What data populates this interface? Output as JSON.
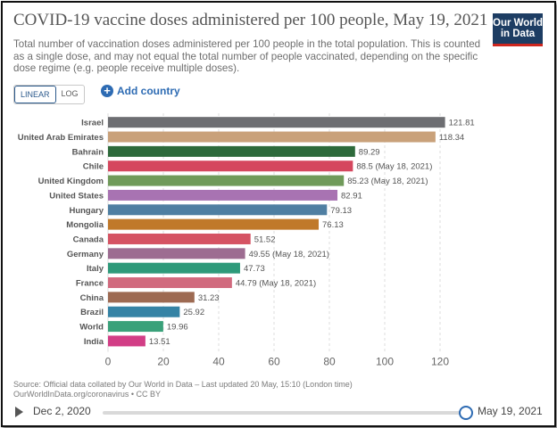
{
  "header": {
    "title": "COVID-19 vaccine doses administered per 100 people, May 19, 2021",
    "subtitle": "Total number of vaccination doses administered per 100 people in the total population. This is counted as a single dose, and may not equal the total number of people vaccinated, depending on the specific dose regime (e.g. people receive multiple doses).",
    "logo_line1": "Our World",
    "logo_line2": "in Data"
  },
  "controls": {
    "linear_label": "LINEAR",
    "log_label": "LOG",
    "add_country_label": "Add country",
    "selected_scale": "linear"
  },
  "colors": {
    "gridline": "#dddddd",
    "axis_text": "#666666",
    "label_text": "#555555",
    "accent": "#2d6bb3"
  },
  "chart_data": {
    "type": "bar",
    "orientation": "horizontal",
    "xlim": [
      0,
      120
    ],
    "xticks": [
      "0",
      "20",
      "40",
      "60",
      "80",
      "100",
      "120"
    ],
    "grid": true,
    "categories": [
      "Israel",
      "United Arab Emirates",
      "Bahrain",
      "Chile",
      "United Kingdom",
      "United States",
      "Hungary",
      "Mongolia",
      "Canada",
      "Germany",
      "Italy",
      "France",
      "China",
      "Brazil",
      "World",
      "India"
    ],
    "values": [
      121.81,
      118.34,
      89.29,
      88.5,
      85.23,
      82.91,
      79.13,
      76.13,
      51.52,
      49.55,
      47.73,
      44.79,
      31.23,
      25.92,
      19.96,
      13.51
    ],
    "value_labels": [
      "121.81",
      "118.34",
      "89.29",
      "88.5 (May 18, 2021)",
      "85.23 (May 18, 2021)",
      "82.91",
      "79.13",
      "76.13",
      "51.52",
      "49.55 (May 18, 2021)",
      "47.73",
      "44.79 (May 18, 2021)",
      "31.23",
      "25.92",
      "19.96",
      "13.51"
    ],
    "bar_colors": [
      "#6d6e72",
      "#c9a17a",
      "#2d6a3b",
      "#d5475e",
      "#709a5a",
      "#a873b2",
      "#4f7fa2",
      "#c0792a",
      "#d55363",
      "#9d6c91",
      "#2e9a7a",
      "#d16a7e",
      "#9d6a52",
      "#3583a5",
      "#3aa17a",
      "#d23e86"
    ]
  },
  "source": {
    "line1": "Source: Official data collated by Our World in Data – Last updated 20 May, 15:10 (London time)",
    "line2": "OurWorldInData.org/coronavirus • CC BY"
  },
  "timeline": {
    "start_date": "Dec 2, 2020",
    "end_date": "May 19, 2021",
    "position": 1.0
  }
}
